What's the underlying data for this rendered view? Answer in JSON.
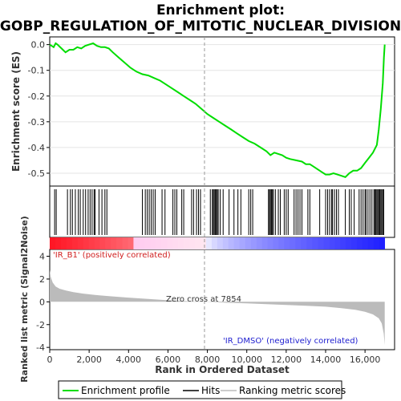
{
  "chart_data": {
    "type": "line",
    "title_line1": "Enrichment plot:",
    "title_line2": "GOBP_REGULATION_OF_MITOTIC_NUCLEAR_DIVISION",
    "es_panel": {
      "ylabel": "Enrichment score (ES)",
      "ylim": [
        -0.55,
        0.03
      ],
      "yticks": [
        0.0,
        -0.1,
        -0.2,
        -0.3,
        -0.4,
        -0.5
      ],
      "ytick_labels": [
        "0.0",
        "-0.1",
        "-0.2",
        "-0.3",
        "-0.4",
        "-0.5"
      ],
      "series": [
        {
          "name": "Enrichment profile",
          "color": "#00dd00",
          "x": [
            0,
            200,
            300,
            400,
            600,
            800,
            1000,
            1200,
            1400,
            1600,
            1800,
            2000,
            2200,
            2400,
            2600,
            2800,
            3000,
            3200,
            3500,
            3800,
            4100,
            4400,
            4700,
            5000,
            5300,
            5600,
            5900,
            6200,
            6500,
            6800,
            7100,
            7400,
            7700,
            8000,
            8300,
            8600,
            8900,
            9200,
            9500,
            9800,
            10100,
            10400,
            10700,
            11000,
            11200,
            11400,
            11600,
            11800,
            12000,
            12200,
            12500,
            12800,
            13000,
            13200,
            13400,
            13600,
            13800,
            14000,
            14200,
            14400,
            14600,
            14800,
            15000,
            15200,
            15400,
            15600,
            15800,
            16000,
            16200,
            16400,
            16600,
            16700,
            16800,
            16900,
            16960,
            17000
          ],
          "y": [
            0.0,
            -0.01,
            0.005,
            0.0,
            -0.015,
            -0.03,
            -0.02,
            -0.02,
            -0.01,
            -0.015,
            -0.005,
            0.0,
            0.005,
            -0.005,
            -0.01,
            -0.01,
            -0.015,
            -0.03,
            -0.05,
            -0.07,
            -0.09,
            -0.105,
            -0.115,
            -0.12,
            -0.13,
            -0.14,
            -0.155,
            -0.17,
            -0.185,
            -0.2,
            -0.215,
            -0.23,
            -0.25,
            -0.27,
            -0.285,
            -0.3,
            -0.315,
            -0.33,
            -0.345,
            -0.36,
            -0.375,
            -0.385,
            -0.4,
            -0.415,
            -0.43,
            -0.42,
            -0.425,
            -0.43,
            -0.44,
            -0.445,
            -0.45,
            -0.455,
            -0.465,
            -0.465,
            -0.475,
            -0.485,
            -0.495,
            -0.505,
            -0.505,
            -0.5,
            -0.505,
            -0.51,
            -0.515,
            -0.5,
            -0.49,
            -0.49,
            -0.48,
            -0.46,
            -0.44,
            -0.42,
            -0.39,
            -0.33,
            -0.25,
            -0.15,
            -0.05,
            0.0
          ]
        }
      ]
    },
    "hits": {
      "name": "Hits",
      "positions": [
        250,
        330,
        900,
        1050,
        1150,
        1300,
        1450,
        1550,
        1700,
        1820,
        1950,
        2050,
        2150,
        2250,
        2300,
        2500,
        2650,
        2800,
        2900,
        4700,
        4850,
        4950,
        5050,
        5150,
        5250,
        5350,
        5700,
        5850,
        6250,
        6350,
        6450,
        6700,
        6800,
        7200,
        7300,
        7450,
        7550,
        7650,
        8150,
        8250,
        8300,
        8350,
        8400,
        8450,
        8500,
        8550,
        8650,
        8800,
        9100,
        9350,
        9550,
        9700,
        10100,
        10200,
        10300,
        11100,
        11150,
        11200,
        11250,
        11300,
        11350,
        11450,
        11600,
        11700,
        11900,
        12000,
        12100,
        12400,
        12500,
        12600,
        12700,
        12800,
        13100,
        13200,
        13700,
        14000,
        14100,
        14200,
        14300,
        14350,
        14450,
        14550,
        14650,
        15000,
        15200,
        15300,
        15450,
        15700,
        15800,
        15900,
        16000,
        16050,
        16150,
        16250,
        16350,
        16450,
        16500,
        16550,
        16600,
        16650,
        16700,
        16750,
        16800,
        16850,
        16900,
        16950
      ]
    },
    "metric_panel": {
      "ylabel": "Ranked list metric (Signal2Noise)",
      "ylim": [
        -4.2,
        4.6
      ],
      "yticks": [
        4,
        2,
        0,
        -2,
        -4
      ],
      "ytick_labels": [
        "4",
        "2",
        "0",
        "-2",
        "-4"
      ],
      "x": [
        0,
        50,
        150,
        300,
        500,
        800,
        1200,
        1700,
        2300,
        3000,
        4000,
        5000,
        6000,
        7000,
        7854,
        9000,
        10000,
        11000,
        12000,
        13000,
        14000,
        14800,
        15500,
        16000,
        16400,
        16700,
        16850,
        16950,
        17000
      ],
      "values": [
        2.8,
        2.2,
        1.7,
        1.35,
        1.15,
        1.0,
        0.85,
        0.72,
        0.6,
        0.5,
        0.37,
        0.25,
        0.14,
        0.06,
        0.0,
        -0.08,
        -0.14,
        -0.2,
        -0.27,
        -0.34,
        -0.43,
        -0.55,
        -0.7,
        -0.88,
        -1.1,
        -1.45,
        -1.9,
        -2.8,
        -3.8
      ],
      "pos_label": "'IR_B1' (positively correlated)",
      "neg_label": "'IR_DMSO' (negatively correlated)",
      "zero_cross_label": "Zero cross at 7854",
      "zero_cross": 7854
    },
    "xaxis": {
      "label": "Rank in Ordered Dataset",
      "xlim": [
        0,
        17500
      ],
      "ticks": [
        0,
        2000,
        4000,
        6000,
        8000,
        10000,
        12000,
        14000,
        16000
      ],
      "tick_labels": [
        "0",
        "2,000",
        "4,000",
        "6,000",
        "8,000",
        "10,000",
        "12,000",
        "14,000",
        "16,000"
      ],
      "n_genes": 17000
    },
    "legend": {
      "placement": "bottom",
      "entries": [
        {
          "label": "Enrichment profile",
          "color": "#00dd00"
        },
        {
          "label": "Hits",
          "color": "#000000"
        },
        {
          "label": "Ranking metric scores",
          "color": "#bbbbbb"
        }
      ]
    }
  }
}
